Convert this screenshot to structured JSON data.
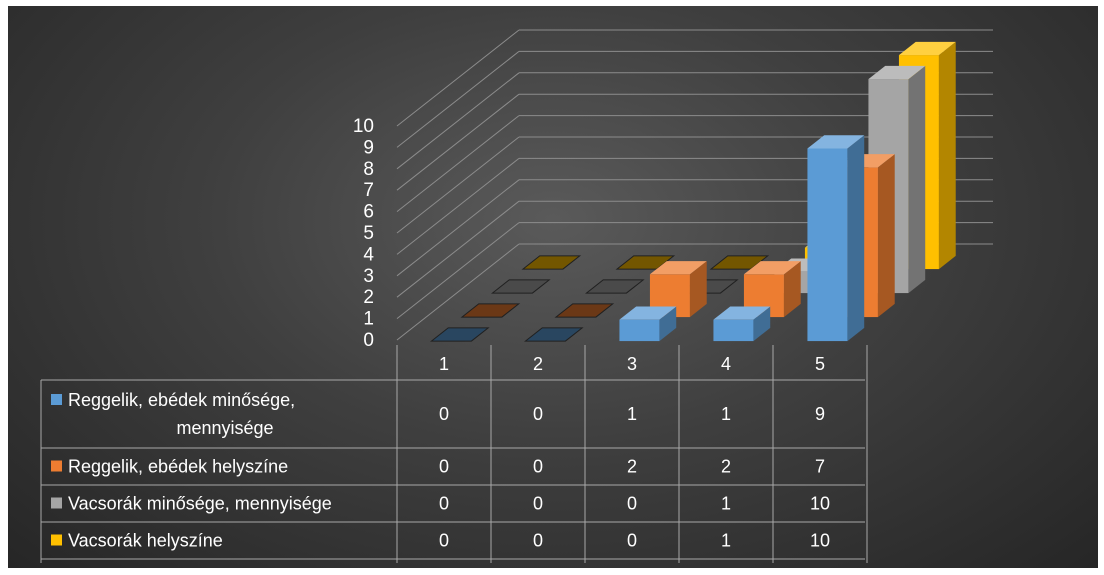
{
  "chart_data": {
    "type": "bar",
    "subtype": "3d-column-with-data-table",
    "categories": [
      "1",
      "2",
      "3",
      "4",
      "5"
    ],
    "ylim": [
      0,
      10
    ],
    "yticks": [
      "0",
      "1",
      "2",
      "3",
      "4",
      "5",
      "6",
      "7",
      "8",
      "9",
      "10"
    ],
    "grid": true,
    "legend": "in-data-table",
    "series": [
      {
        "name": "Reggelik, ebédek minősége, mennyisége",
        "values": [
          0,
          0,
          1,
          1,
          9
        ],
        "color": "#5b9bd5"
      },
      {
        "name": "Reggelik, ebédek helyszíne",
        "values": [
          0,
          0,
          2,
          2,
          7
        ],
        "color": "#ed7d31"
      },
      {
        "name": "Vacsorák minősége, mennyisége",
        "values": [
          0,
          0,
          0,
          1,
          10
        ],
        "color": "#a5a5a5"
      },
      {
        "name": "Vacsorák helyszíne",
        "values": [
          0,
          0,
          0,
          1,
          10
        ],
        "color": "#ffc000"
      }
    ]
  }
}
